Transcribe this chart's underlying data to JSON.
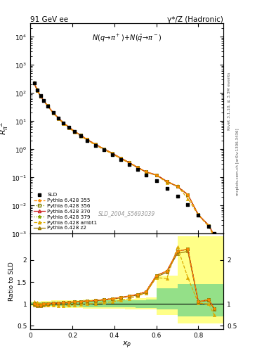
{
  "title_left": "91 GeV ee",
  "title_right": "γ*/Z (Hadronic)",
  "annotation": "N(q → π+)+N(π̅ → π⁻)",
  "dataset_label": "SLD_2004_S5693039",
  "ylabel_ratio": "Ratio to SLD",
  "xlabel": "x_{p}",
  "rivet_label": "Rivet 3.1.10, ≥ 3.3M events",
  "mcplots_label": "mcplots.cern.ch [arXiv:1306.3436]",
  "xp": [
    0.018,
    0.033,
    0.048,
    0.063,
    0.083,
    0.108,
    0.133,
    0.158,
    0.183,
    0.21,
    0.24,
    0.27,
    0.31,
    0.35,
    0.39,
    0.43,
    0.47,
    0.51,
    0.55,
    0.6,
    0.65,
    0.7,
    0.75,
    0.8,
    0.85,
    0.875
  ],
  "SLD_y": [
    230,
    130,
    80,
    55,
    35,
    20,
    13,
    8.5,
    6.0,
    4.2,
    3.0,
    2.1,
    1.4,
    0.95,
    0.65,
    0.43,
    0.29,
    0.19,
    0.125,
    0.075,
    0.042,
    0.022,
    0.011,
    0.0045,
    0.0018,
    0.001
  ],
  "ratio_355": [
    1.0,
    0.97,
    0.98,
    1.0,
    1.01,
    1.02,
    1.02,
    1.03,
    1.04,
    1.05,
    1.06,
    1.07,
    1.08,
    1.1,
    1.12,
    1.15,
    1.18,
    1.22,
    1.28,
    1.65,
    1.75,
    2.2,
    2.25,
    1.05,
    1.1,
    0.9
  ],
  "ratio_356": [
    1.0,
    0.97,
    0.98,
    1.0,
    1.01,
    1.02,
    1.02,
    1.03,
    1.04,
    1.05,
    1.06,
    1.07,
    1.08,
    1.1,
    1.12,
    1.15,
    1.18,
    1.22,
    1.28,
    1.65,
    1.75,
    2.2,
    2.25,
    1.05,
    1.1,
    0.9
  ],
  "ratio_370": [
    1.0,
    0.97,
    0.98,
    1.0,
    1.01,
    1.02,
    1.02,
    1.03,
    1.04,
    1.05,
    1.06,
    1.07,
    1.08,
    1.1,
    1.12,
    1.15,
    1.18,
    1.22,
    1.28,
    1.65,
    1.75,
    2.2,
    2.25,
    1.05,
    1.1,
    0.9
  ],
  "ratio_379": [
    1.0,
    0.97,
    0.98,
    1.0,
    1.01,
    1.02,
    1.02,
    1.03,
    1.04,
    1.05,
    1.06,
    1.07,
    1.08,
    1.1,
    1.12,
    1.15,
    1.18,
    1.22,
    1.28,
    1.65,
    1.75,
    2.2,
    2.25,
    1.05,
    1.1,
    0.9
  ],
  "ratio_ambt1": [
    1.05,
    1.03,
    1.01,
    0.99,
    0.98,
    0.97,
    0.96,
    0.96,
    0.97,
    0.98,
    0.99,
    1.0,
    1.01,
    1.03,
    1.05,
    1.08,
    1.12,
    1.18,
    1.25,
    1.6,
    1.58,
    2.3,
    1.6,
    1.02,
    1.0,
    0.75
  ],
  "ratio_z2": [
    0.97,
    0.95,
    0.96,
    0.98,
    1.0,
    1.01,
    1.02,
    1.02,
    1.03,
    1.04,
    1.05,
    1.06,
    1.07,
    1.09,
    1.11,
    1.14,
    1.17,
    1.2,
    1.25,
    1.62,
    1.72,
    2.15,
    2.2,
    1.05,
    1.08,
    0.88
  ],
  "band_x_edges": [
    0.0,
    0.05,
    0.1,
    0.15,
    0.2,
    0.25,
    0.3,
    0.35,
    0.4,
    0.45,
    0.5,
    0.55,
    0.6,
    0.7,
    0.8,
    0.92
  ],
  "yellow_lo": [
    0.95,
    0.93,
    0.92,
    0.91,
    0.91,
    0.9,
    0.9,
    0.89,
    0.89,
    0.88,
    0.88,
    0.87,
    0.75,
    0.55,
    0.55,
    0.55
  ],
  "yellow_hi": [
    1.05,
    1.07,
    1.08,
    1.09,
    1.09,
    1.1,
    1.1,
    1.11,
    1.11,
    1.12,
    1.13,
    1.15,
    1.65,
    2.55,
    2.55,
    2.55
  ],
  "green_lo": [
    0.97,
    0.96,
    0.95,
    0.94,
    0.94,
    0.93,
    0.93,
    0.92,
    0.92,
    0.92,
    0.91,
    0.91,
    0.88,
    0.72,
    0.72,
    0.72
  ],
  "green_hi": [
    1.03,
    1.04,
    1.05,
    1.06,
    1.06,
    1.07,
    1.07,
    1.08,
    1.08,
    1.09,
    1.09,
    1.1,
    1.35,
    1.45,
    1.45,
    1.45
  ],
  "color_355": "#FF8C00",
  "color_356": "#808000",
  "color_370": "#CC2222",
  "color_379": "#88AA00",
  "color_ambt1": "#DDAA00",
  "color_z2": "#997700",
  "ls_355": "--",
  "ls_356": ":",
  "ls_370": "-",
  "ls_379": ":",
  "ls_ambt1": "--",
  "ls_z2": "-",
  "mk_355": "*",
  "mk_356": "s",
  "mk_370": "^",
  "mk_379": "*",
  "mk_ambt1": "^",
  "mk_z2": "^",
  "ylim_main": [
    0.001,
    30000.0
  ],
  "ylim_ratio": [
    0.42,
    2.6
  ],
  "xlim": [
    0.0,
    0.92
  ]
}
